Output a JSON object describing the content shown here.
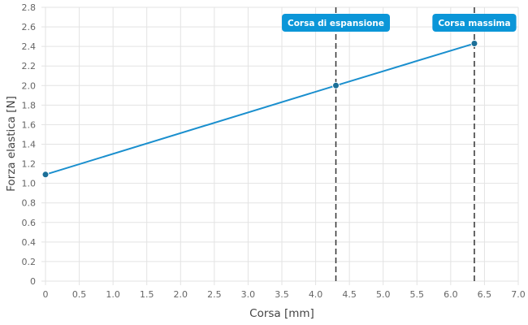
{
  "chart_data": {
    "type": "line",
    "title": "",
    "xlabel": "Corsa [mm]",
    "ylabel": "Forza elastica [N]",
    "xlim": [
      0,
      7
    ],
    "ylim": [
      0,
      2.8
    ],
    "xticks": [
      0,
      0.5,
      1,
      1.5,
      2,
      2.5,
      3,
      3.5,
      4,
      4.5,
      5,
      5.5,
      6,
      6.5,
      7
    ],
    "xtick_labels": [
      "0",
      "0.5",
      "1.0",
      "1.5",
      "2.0",
      "2.5",
      "3.0",
      "3.5",
      "4.0",
      "4.5",
      "5.0",
      "5.5",
      "6.0",
      "6.5",
      "7.0"
    ],
    "yticks": [
      0,
      0.2,
      0.4,
      0.6,
      0.8,
      1.0,
      1.2,
      1.4,
      1.6,
      1.8,
      2.0,
      2.2,
      2.4,
      2.6,
      2.8
    ],
    "ytick_labels": [
      "0",
      "0.2",
      "0.4",
      "0.6",
      "0.8",
      "1.0",
      "1.2",
      "1.4",
      "1.6",
      "1.8",
      "2.0",
      "2.2",
      "2.4",
      "2.6",
      "2.8"
    ],
    "grid": true,
    "series": [
      {
        "color": "#1a8fce",
        "points": [
          {
            "x": 0,
            "y": 1.09
          },
          {
            "x": 4.3,
            "y": 2.0
          },
          {
            "x": 6.35,
            "y": 2.43
          }
        ]
      }
    ],
    "annotations": [
      {
        "x": 4.3,
        "label": "Corsa di espansione",
        "color": "#0b96d8"
      },
      {
        "x": 6.35,
        "label": "Corsa massima",
        "color": "#0b96d8"
      }
    ]
  }
}
